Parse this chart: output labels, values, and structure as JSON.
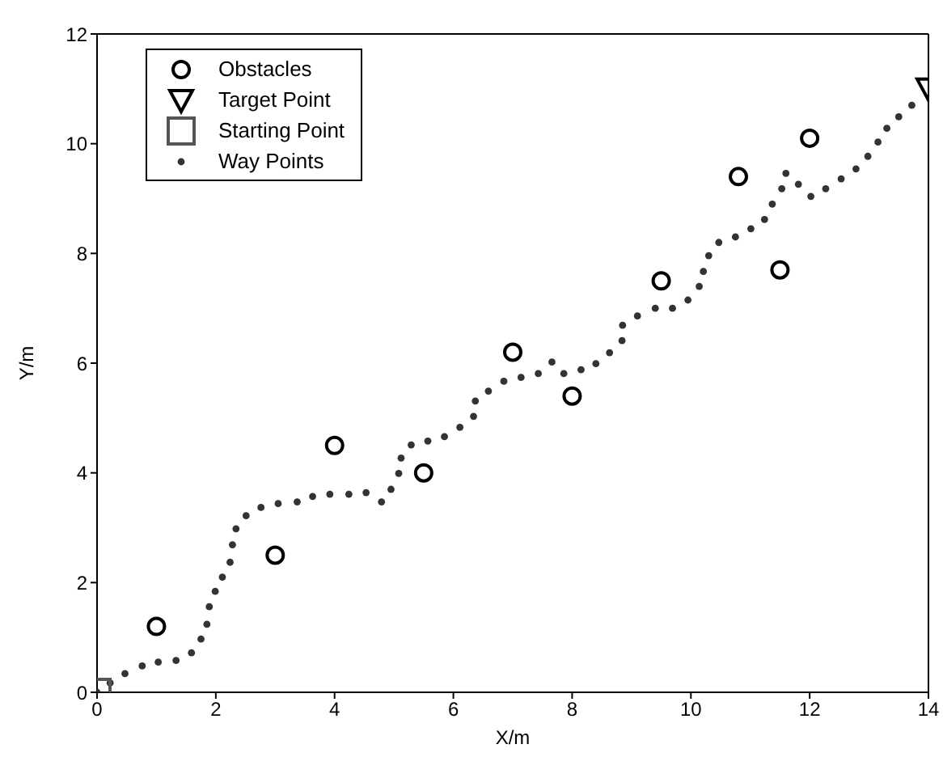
{
  "chart_data": {
    "type": "scatter",
    "xlabel": "X/m",
    "ylabel": "Y/m",
    "xlim": [
      0,
      14
    ],
    "xticks": [
      0,
      2,
      4,
      6,
      8,
      10,
      12,
      14
    ],
    "ylim": [
      0,
      12
    ],
    "yticks": [
      0,
      2,
      4,
      6,
      8,
      10,
      12
    ],
    "legend": "top left",
    "series": [
      {
        "name": "Obstacles",
        "color": "#000000",
        "marker": "circle",
        "x": [
          1,
          3,
          4,
          5.5,
          7,
          8,
          9.5,
          10.8,
          11.5,
          12
        ],
        "values": [
          1.2,
          2.5,
          4.5,
          4,
          6.2,
          5.4,
          7.5,
          9.4,
          7.7,
          10.1
        ]
      },
      {
        "name": "Target Point",
        "color": "#000000",
        "marker": "triangle",
        "x": [
          14
        ],
        "values": [
          11
        ]
      },
      {
        "name": "Starting Point",
        "color": "#555555",
        "marker": "square",
        "x": [
          0
        ],
        "values": [
          0
        ]
      },
      {
        "name": "Way Points",
        "color": "#333333",
        "marker": "dot",
        "x": [
          0,
          0.22,
          0.47,
          0.76,
          1.03,
          1.33,
          1.59,
          1.75,
          1.85,
          1.89,
          1.99,
          2.11,
          2.24,
          2.28,
          2.34,
          2.51,
          2.76,
          3.05,
          3.37,
          3.63,
          3.92,
          4.24,
          4.53,
          4.79,
          4.95,
          5.08,
          5.12,
          5.29,
          5.57,
          5.85,
          6.11,
          6.34,
          6.37,
          6.59,
          6.85,
          7.14,
          7.43,
          7.66,
          7.86,
          8.15,
          8.4,
          8.63,
          8.84,
          8.85,
          9.1,
          9.4,
          9.69,
          9.95,
          10.14,
          10.21,
          10.3,
          10.47,
          10.75,
          11.01,
          11.24,
          11.37,
          11.53,
          11.6,
          11.81,
          12.02,
          12.27,
          12.53,
          12.78,
          12.98,
          13.15,
          13.3,
          13.5,
          13.72
        ],
        "values": [
          0,
          0.17,
          0.34,
          0.48,
          0.55,
          0.58,
          0.72,
          0.97,
          1.24,
          1.56,
          1.84,
          2.1,
          2.37,
          2.69,
          2.98,
          3.22,
          3.37,
          3.44,
          3.47,
          3.57,
          3.61,
          3.61,
          3.64,
          3.47,
          3.7,
          3.99,
          4.27,
          4.51,
          4.58,
          4.66,
          4.83,
          5.03,
          5.31,
          5.49,
          5.67,
          5.74,
          5.81,
          6.02,
          5.81,
          5.88,
          5.99,
          6.19,
          6.41,
          6.69,
          6.86,
          7,
          7,
          7.15,
          7.4,
          7.67,
          7.96,
          8.2,
          8.3,
          8.45,
          8.62,
          8.9,
          9.18,
          9.46,
          9.26,
          9.04,
          9.18,
          9.36,
          9.54,
          9.77,
          10.03,
          10.28,
          10.49,
          10.7
        ]
      }
    ]
  }
}
